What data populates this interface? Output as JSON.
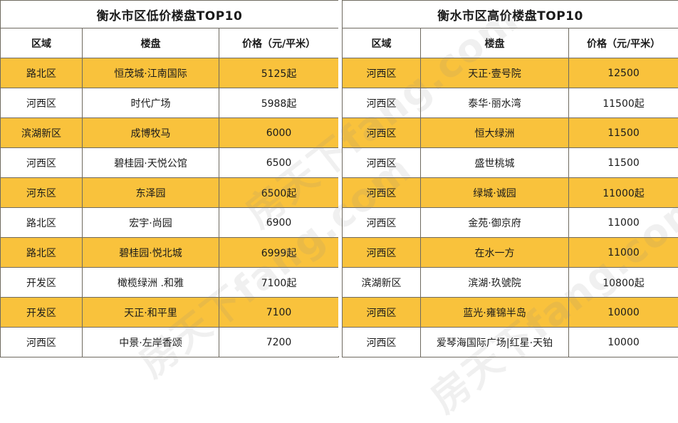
{
  "left_table": {
    "title": "衡水市区低价楼盘TOP10",
    "headers": [
      "区域",
      "楼盘",
      "价格（元/平米）"
    ],
    "rows": [
      [
        "路北区",
        "恒茂城·江南国际",
        "5125起"
      ],
      [
        "河西区",
        "时代广场",
        "5988起"
      ],
      [
        "滨湖新区",
        "成博牧马",
        "6000"
      ],
      [
        "河西区",
        "碧桂园·天悦公馆",
        "6500"
      ],
      [
        "河东区",
        "东泽园",
        "6500起"
      ],
      [
        "路北区",
        "宏宇·尚园",
        "6900"
      ],
      [
        "路北区",
        "碧桂园·悦北城",
        "6999起"
      ],
      [
        "开发区",
        "橄榄绿洲 .和雅",
        "7100起"
      ],
      [
        "开发区",
        "天正·和平里",
        "7100"
      ],
      [
        "河西区",
        "中景·左岸香颂",
        "7200"
      ]
    ]
  },
  "right_table": {
    "title": "衡水市区高价楼盘TOP10",
    "headers": [
      "区域",
      "楼盘",
      "价格（元/平米）"
    ],
    "rows": [
      [
        "河西区",
        "天正·壹号院",
        "12500"
      ],
      [
        "河西区",
        "泰华·丽水湾",
        "11500起"
      ],
      [
        "河西区",
        "恒大绿洲",
        "11500"
      ],
      [
        "河西区",
        "盛世桃城",
        "11500"
      ],
      [
        "河西区",
        "绿城·诚园",
        "11000起"
      ],
      [
        "河西区",
        "金苑·御京府",
        "11000"
      ],
      [
        "河西区",
        "在水一方",
        "11000"
      ],
      [
        "滨湖新区",
        "滨湖·玖號院",
        "10800起"
      ],
      [
        "河西区",
        "蓝光·雍锦半岛",
        "10000"
      ],
      [
        "河西区",
        "爱琴海国际广场|红星·天铂",
        "10000"
      ]
    ]
  },
  "watermarks": [
    "房天下fang.com",
    "房天下fang.com",
    "房天下fang.com"
  ],
  "colors": {
    "highlight_row": "#f9c23c",
    "plain_row": "#ffffff",
    "border": "#6f6a60"
  }
}
